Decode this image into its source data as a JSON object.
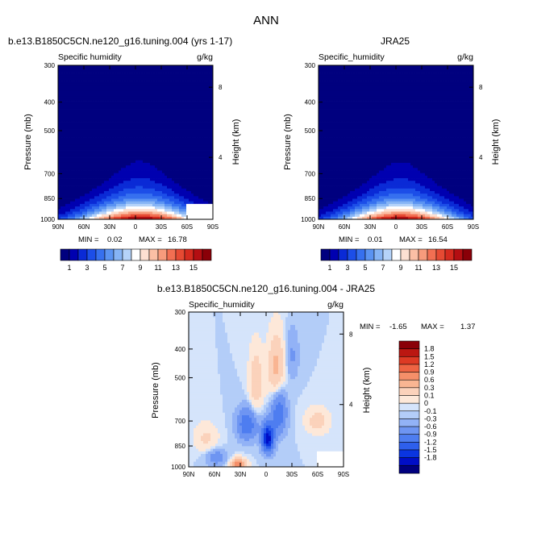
{
  "figure": {
    "main_title": "ANN",
    "colors": {
      "background": "#ffffff",
      "abs_cmap": [
        "#00007f",
        "#0000b0",
        "#0a2ad6",
        "#1c4ee8",
        "#3670ef",
        "#5a93f2",
        "#86b4f5",
        "#b5d3f9",
        "#ffffff",
        "#fde0d2",
        "#fbbfa5",
        "#f79b7c",
        "#f26f52",
        "#e64a33",
        "#d52a1e",
        "#b40e12",
        "#8a0008"
      ],
      "diff_cmap": [
        "#00007f",
        "#000ec7",
        "#0a35e0",
        "#2e5fec",
        "#4e7df0",
        "#6e95f2",
        "#92b2f6",
        "#b3cdf8",
        "#d5e4fb",
        "#fde8d9",
        "#fbd2bb",
        "#f9b592",
        "#f58f69",
        "#ee6443",
        "#dd3a24",
        "#bb1711",
        "#8a0008"
      ]
    }
  },
  "chart_data": [
    {
      "type": "heatmap",
      "name": "model",
      "title": "b.e13.B1850C5CN.ne120_g16.tuning.004 (yrs 1-17)",
      "subtitle_left": "Specific humidity",
      "units": "g/kg",
      "xlabel": "",
      "ylabel": "Pressure (mb)",
      "ylabel_right": "Height (km)",
      "x_ticks": [
        "90N",
        "60N",
        "30N",
        "0",
        "30S",
        "60S",
        "90S"
      ],
      "y_ticks": [
        "300",
        "400",
        "500",
        "700",
        "850",
        "1000"
      ],
      "height_ticks": [
        "8",
        "4"
      ],
      "min_label": "MIN =",
      "min_value": "0.02",
      "max_label": "MAX =",
      "max_value": "16.78",
      "colorbar_labels": [
        "1",
        "3",
        "5",
        "7",
        "9",
        "11",
        "13",
        "15"
      ],
      "field": {
        "peak": 16.78,
        "center_lat": -5,
        "surface_width": 45,
        "scale_height": 0.185,
        "floor": 0.02
      }
    },
    {
      "type": "heatmap",
      "name": "obs",
      "title": "JRA25",
      "subtitle_left": "Specific_humidity",
      "units": "g/kg",
      "xlabel": "",
      "ylabel": "Pressure (mb)",
      "ylabel_right": "Height (km)",
      "x_ticks": [
        "90N",
        "60N",
        "30N",
        "0",
        "30S",
        "60S",
        "90S"
      ],
      "y_ticks": [
        "300",
        "400",
        "500",
        "700",
        "850",
        "1000"
      ],
      "height_ticks": [
        "8",
        "4"
      ],
      "min_label": "MIN =",
      "min_value": "0.01",
      "max_label": "MAX =",
      "max_value": "16.54",
      "colorbar_labels": [
        "1",
        "3",
        "5",
        "7",
        "9",
        "11",
        "13",
        "15"
      ],
      "field": {
        "peak": 16.54,
        "center_lat": -5,
        "surface_width": 44,
        "scale_height": 0.185,
        "floor": 0.01
      }
    },
    {
      "type": "heatmap",
      "name": "difference",
      "title": "b.e13.B1850C5CN.ne120_g16.tuning.004 - JRA25",
      "subtitle_left": "Specific_humidity",
      "units": "g/kg",
      "xlabel": "",
      "ylabel": "Pressure (mb)",
      "ylabel_right": "Height (km)",
      "x_ticks": [
        "90N",
        "60N",
        "30N",
        "0",
        "30S",
        "60S",
        "90S"
      ],
      "y_ticks": [
        "300",
        "400",
        "500",
        "700",
        "850",
        "1000"
      ],
      "height_ticks": [
        "8",
        "4"
      ],
      "min_label": "MIN =",
      "min_value": "-1.65",
      "max_label": "MAX =",
      "max_value": "1.37",
      "colorbar_labels": [
        "1.8",
        "1.5",
        "1.2",
        "0.9",
        "0.6",
        "0.3",
        "0.1",
        "0",
        "-0.1",
        "-0.3",
        "-0.6",
        "-0.9",
        "-1.2",
        "-1.5",
        "-1.8"
      ]
    }
  ]
}
